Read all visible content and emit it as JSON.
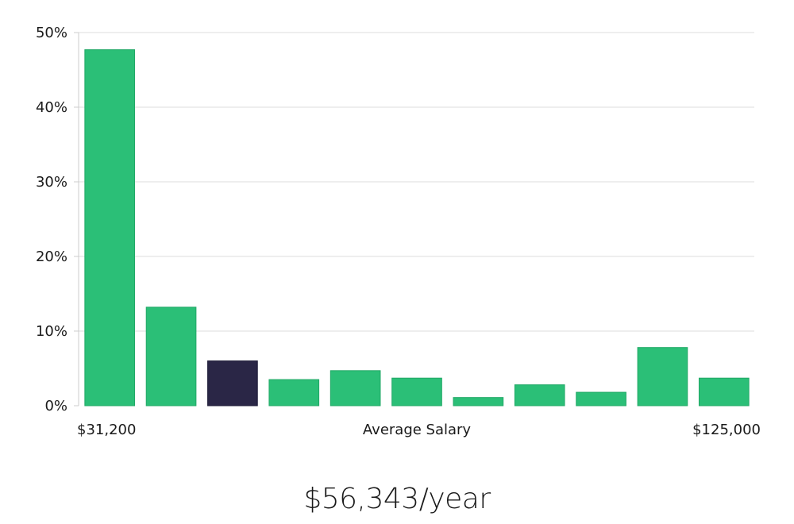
{
  "chart_data": {
    "type": "bar",
    "categories": [
      "$31,200",
      "",
      "",
      "",
      "",
      "",
      "",
      "",
      "",
      "",
      "$125,000"
    ],
    "values": [
      47.7,
      13.2,
      6.0,
      3.5,
      4.7,
      3.7,
      1.1,
      2.8,
      1.8,
      7.8,
      3.7
    ],
    "highlight_index": 2,
    "ylim": [
      0,
      50
    ],
    "yticks": [
      0,
      10,
      20,
      30,
      40,
      50
    ],
    "ytick_labels": [
      "0%",
      "10%",
      "20%",
      "30%",
      "40%",
      "50%"
    ],
    "xlabel": "Average Salary",
    "x_min_label": "$31,200",
    "x_max_label": "$125,000",
    "grid": true,
    "colors": {
      "bar": "#2bbf77",
      "bar_border": "#21a866",
      "highlight": "#2a2646",
      "grid": "#dddddd",
      "axis": "#cccccc"
    }
  },
  "summary": {
    "average_salary": "$56,343/year"
  }
}
